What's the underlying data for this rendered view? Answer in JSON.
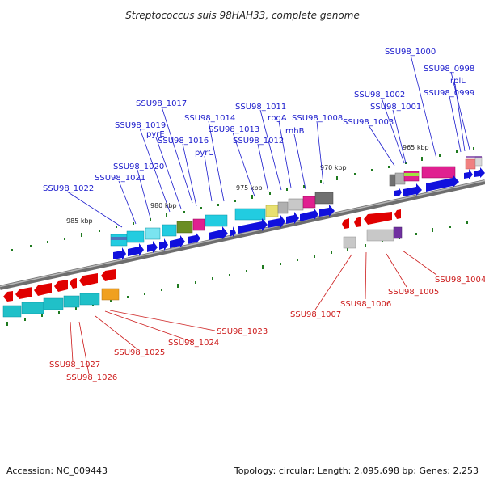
{
  "header": {
    "title": "Streptococcus suis 98HAH33, complete genome"
  },
  "footer": {
    "accession": "Accession: NC_009443",
    "summary": "Topology: circular; Length: 2,095,698 bp; Genes: 2,253"
  },
  "colors": {
    "backbone": "#8c8c8c",
    "tick": "#1f7a1f",
    "upper_label": "#1a1acc",
    "lower_label": "#cc1a1a",
    "forward_gene": "#1010dd",
    "reverse_gene": "#e00000",
    "cog_cyan": "#22cce0",
    "cog_teal": "#20c0c8",
    "cog_olive": "#6b8e23",
    "cog_magenta": "#e02090",
    "cog_yellow": "#e8e070",
    "cog_gray": "#b0b0b0",
    "cog_dark_gray": "#707070",
    "cog_lime": "#a0e040",
    "cog_purple": "#7030a0",
    "cog_orange": "#f0a020",
    "cog_pink": "#f08080",
    "cog_light_gray": "#d8d8d8"
  },
  "scale_labels": [
    "965 kbp",
    "970 kbp",
    "975 kbp",
    "980 kbp",
    "985 kbp"
  ],
  "upper_labels": [
    "SSU98_1000",
    "SSU98_0998",
    "rplL",
    "SSU98_0999",
    "SSU98_1002",
    "SSU98_1001",
    "SSU98_1003",
    "SSU98_1011",
    "SSU98_1008",
    "rbgA",
    "SSU98_1017",
    "SSU98_1014",
    "SSU98_1019",
    "SSU98_1013",
    "rnhB",
    "pyrE",
    "SSU98_1016",
    "SSU98_1012",
    "pyrC",
    "SSU98_1020",
    "SSU98_1021",
    "SSU98_1022"
  ],
  "lower_labels": [
    "SSU98_1004",
    "SSU98_1005",
    "SSU98_1006",
    "SSU98_1007",
    "SSU98_1023",
    "SSU98_1024",
    "SSU98_1025",
    "SSU98_1027",
    "SSU98_1026"
  ]
}
